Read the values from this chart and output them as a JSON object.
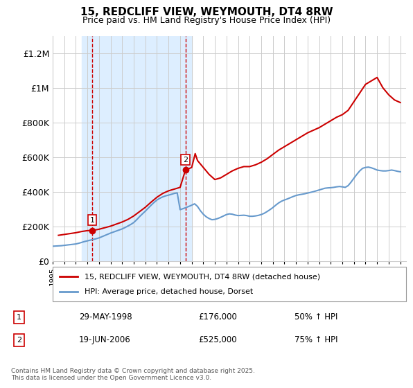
{
  "title": "15, REDCLIFF VIEW, WEYMOUTH, DT4 8RW",
  "subtitle": "Price paid vs. HM Land Registry's House Price Index (HPI)",
  "legend_line1": "15, REDCLIFF VIEW, WEYMOUTH, DT4 8RW (detached house)",
  "legend_line2": "HPI: Average price, detached house, Dorset",
  "footnote": "Contains HM Land Registry data © Crown copyright and database right 2025.\nThis data is licensed under the Open Government Licence v3.0.",
  "transactions": [
    {
      "label": "1",
      "date": "29-MAY-1998",
      "price": 176000,
      "pct": "50% ↑ HPI",
      "year": 1998.41
    },
    {
      "label": "2",
      "date": "19-JUN-2006",
      "price": 525000,
      "pct": "75% ↑ HPI",
      "year": 2006.46
    }
  ],
  "ylim": [
    0,
    1300000
  ],
  "yticks": [
    0,
    200000,
    400000,
    600000,
    800000,
    1000000,
    1200000
  ],
  "ytick_labels": [
    "£0",
    "£200K",
    "£400K",
    "£600K",
    "£800K",
    "£1M",
    "£1.2M"
  ],
  "xlim_start": 1995,
  "xlim_end": 2025.5,
  "hpi_color": "#6699cc",
  "price_color": "#cc0000",
  "bg_highlight_color": "#ddeeff",
  "vline_color": "#cc0000",
  "grid_color": "#cccccc",
  "hpi_data_x": [
    1995.0,
    1995.25,
    1995.5,
    1995.75,
    1996.0,
    1996.25,
    1996.5,
    1996.75,
    1997.0,
    1997.25,
    1997.5,
    1997.75,
    1998.0,
    1998.25,
    1998.5,
    1998.75,
    1999.0,
    1999.25,
    1999.5,
    1999.75,
    2000.0,
    2000.25,
    2000.5,
    2000.75,
    2001.0,
    2001.25,
    2001.5,
    2001.75,
    2002.0,
    2002.25,
    2002.5,
    2002.75,
    2003.0,
    2003.25,
    2003.5,
    2003.75,
    2004.0,
    2004.25,
    2004.5,
    2004.75,
    2005.0,
    2005.25,
    2005.5,
    2005.75,
    2006.0,
    2006.25,
    2006.5,
    2006.75,
    2007.0,
    2007.25,
    2007.5,
    2007.75,
    2008.0,
    2008.25,
    2008.5,
    2008.75,
    2009.0,
    2009.25,
    2009.5,
    2009.75,
    2010.0,
    2010.25,
    2010.5,
    2010.75,
    2011.0,
    2011.25,
    2011.5,
    2011.75,
    2012.0,
    2012.25,
    2012.5,
    2012.75,
    2013.0,
    2013.25,
    2013.5,
    2013.75,
    2014.0,
    2014.25,
    2014.5,
    2014.75,
    2015.0,
    2015.25,
    2015.5,
    2015.75,
    2016.0,
    2016.25,
    2016.5,
    2016.75,
    2017.0,
    2017.25,
    2017.5,
    2017.75,
    2018.0,
    2018.25,
    2018.5,
    2018.75,
    2019.0,
    2019.25,
    2019.5,
    2019.75,
    2020.0,
    2020.25,
    2020.5,
    2020.75,
    2021.0,
    2021.25,
    2021.5,
    2021.75,
    2022.0,
    2022.25,
    2022.5,
    2022.75,
    2023.0,
    2023.25,
    2023.5,
    2023.75,
    2024.0,
    2024.25,
    2024.5,
    2024.75,
    2025.0
  ],
  "hpi_data_y": [
    85000,
    86000,
    87000,
    88000,
    90000,
    92000,
    94000,
    96000,
    98000,
    102000,
    107000,
    112000,
    116000,
    120000,
    124000,
    128000,
    133000,
    140000,
    147000,
    154000,
    161000,
    167000,
    173000,
    179000,
    185000,
    193000,
    202000,
    211000,
    222000,
    238000,
    256000,
    272000,
    288000,
    305000,
    322000,
    338000,
    352000,
    362000,
    370000,
    376000,
    380000,
    385000,
    390000,
    393000,
    296000,
    302000,
    308000,
    315000,
    322000,
    330000,
    315000,
    290000,
    270000,
    255000,
    245000,
    238000,
    240000,
    245000,
    252000,
    260000,
    268000,
    272000,
    270000,
    265000,
    262000,
    263000,
    264000,
    262000,
    258000,
    258000,
    260000,
    263000,
    268000,
    275000,
    285000,
    296000,
    308000,
    322000,
    335000,
    345000,
    352000,
    358000,
    365000,
    372000,
    378000,
    382000,
    385000,
    388000,
    392000,
    396000,
    400000,
    405000,
    410000,
    415000,
    420000,
    422000,
    423000,
    425000,
    428000,
    430000,
    428000,
    425000,
    435000,
    455000,
    478000,
    500000,
    520000,
    535000,
    540000,
    542000,
    538000,
    532000,
    525000,
    522000,
    520000,
    520000,
    522000,
    525000,
    522000,
    518000,
    515000
  ],
  "price_data_x": [
    1995.5,
    1996.0,
    1996.5,
    1997.0,
    1997.5,
    1998.0,
    1998.41,
    1999.0,
    1999.5,
    2000.0,
    2000.5,
    2001.0,
    2001.5,
    2002.0,
    2002.5,
    2003.0,
    2003.5,
    2004.0,
    2004.5,
    2005.0,
    2005.5,
    2006.0,
    2006.46,
    2007.0,
    2007.3,
    2007.5,
    2008.0,
    2008.5,
    2009.0,
    2009.5,
    2010.0,
    2010.5,
    2011.0,
    2011.5,
    2012.0,
    2012.5,
    2013.0,
    2013.5,
    2014.0,
    2014.5,
    2015.0,
    2015.5,
    2016.0,
    2016.5,
    2017.0,
    2017.5,
    2018.0,
    2018.5,
    2019.0,
    2019.5,
    2020.0,
    2020.5,
    2021.0,
    2021.5,
    2022.0,
    2022.5,
    2023.0,
    2023.5,
    2024.0,
    2024.5,
    2025.0
  ],
  "price_data_y": [
    148000,
    153000,
    158000,
    163000,
    170000,
    175000,
    176000,
    183000,
    192000,
    201000,
    213000,
    225000,
    240000,
    260000,
    285000,
    310000,
    340000,
    368000,
    390000,
    405000,
    415000,
    425000,
    525000,
    540000,
    620000,
    580000,
    540000,
    500000,
    470000,
    480000,
    500000,
    520000,
    535000,
    545000,
    545000,
    555000,
    570000,
    590000,
    615000,
    640000,
    660000,
    680000,
    700000,
    720000,
    740000,
    755000,
    770000,
    790000,
    810000,
    830000,
    845000,
    870000,
    920000,
    970000,
    1020000,
    1040000,
    1060000,
    1000000,
    960000,
    930000,
    915000
  ]
}
